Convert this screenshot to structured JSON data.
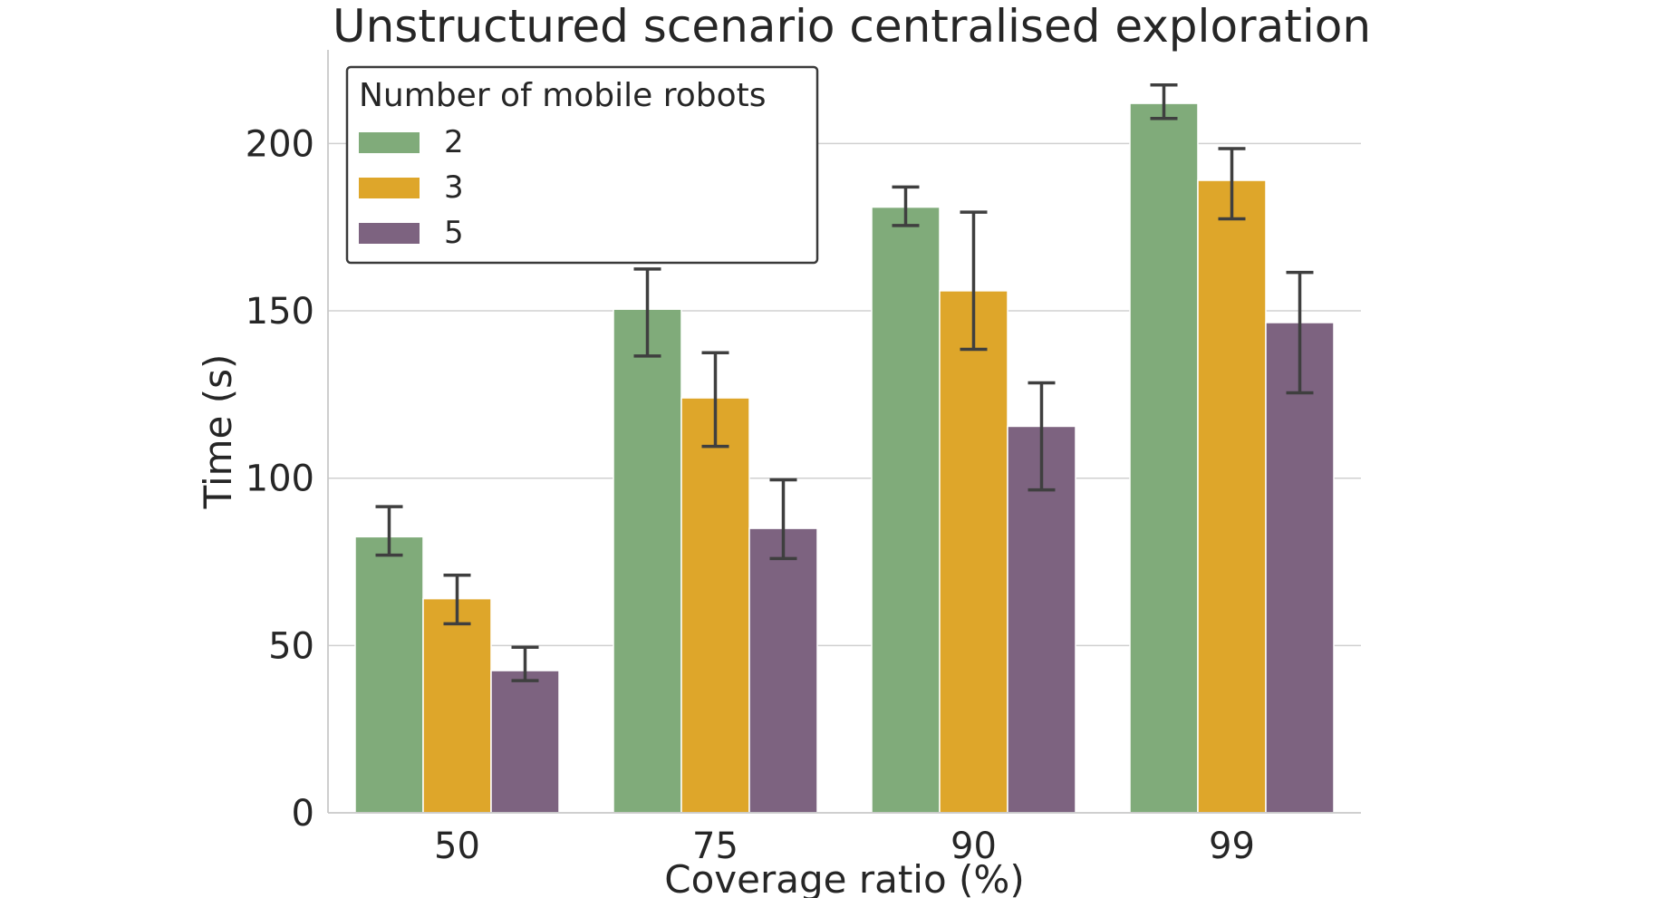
{
  "chart_data": {
    "type": "bar",
    "title": "Unstructured scenario centralised exploration",
    "xlabel": "Coverage ratio (%)",
    "ylabel": "Time (s)",
    "categories": [
      "50",
      "75",
      "90",
      "99"
    ],
    "ylim": [
      0,
      228
    ],
    "yticks": [
      0,
      50,
      100,
      150,
      200
    ],
    "grid": true,
    "legend": {
      "title": "Number of mobile robots",
      "placement": "top-left"
    },
    "series": [
      {
        "name": "2",
        "color": "#80ab7a",
        "values": [
          82.5,
          150.5,
          181,
          212
        ],
        "err_low": [
          77,
          136.5,
          175.5,
          207.5
        ],
        "err_high": [
          91.5,
          162.5,
          187,
          217.5
        ]
      },
      {
        "name": "3",
        "color": "#dea62a",
        "values": [
          64,
          124,
          156,
          189
        ],
        "err_low": [
          56.5,
          109.5,
          138.5,
          177.5
        ],
        "err_high": [
          71,
          137.5,
          179.5,
          198.5
        ]
      },
      {
        "name": "5",
        "color": "#7d6380",
        "values": [
          42.5,
          85,
          115.5,
          146.5
        ],
        "err_low": [
          39.5,
          76,
          96.5,
          125.5
        ],
        "err_high": [
          49.5,
          99.5,
          128.5,
          161.5
        ]
      }
    ]
  }
}
